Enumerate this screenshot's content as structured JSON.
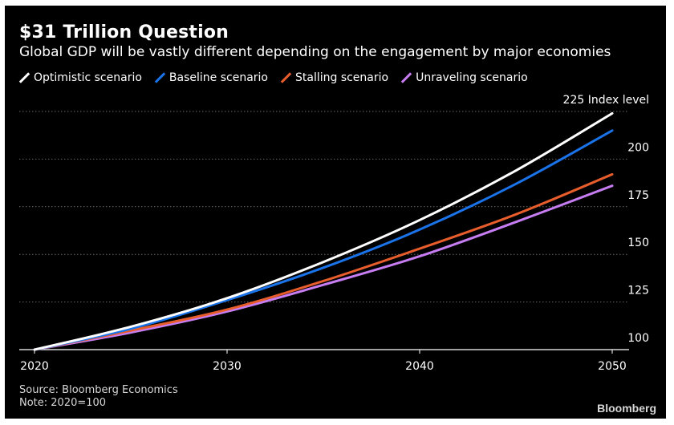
{
  "title": "$31 Trillion Question",
  "subtitle": "Global GDP will be vastly different depending on the engagement by major economies",
  "source": "Source: Bloomberg Economics",
  "note": "Note: 2020=100",
  "brand": "Bloomberg",
  "chart_data": {
    "type": "line",
    "x_ticks": [
      "2020",
      "2030",
      "2040",
      "2050"
    ],
    "y_ticks": [
      "100",
      "125",
      "150",
      "175",
      "200",
      "225 Index level"
    ],
    "xlim": [
      2020,
      2050
    ],
    "ylim": [
      100,
      225
    ],
    "grid": true,
    "legend": "top-left",
    "series": [
      {
        "name": "Optimistic scenario",
        "color": "#ffffff",
        "x": [
          2020,
          2025,
          2030,
          2035,
          2040,
          2045,
          2050
        ],
        "values": [
          100,
          112,
          127,
          146,
          168,
          194,
          224
        ]
      },
      {
        "name": "Baseline scenario",
        "color": "#1a73e8",
        "x": [
          2020,
          2025,
          2030,
          2035,
          2040,
          2045,
          2050
        ],
        "values": [
          100,
          111,
          126,
          143,
          163,
          187,
          215
        ]
      },
      {
        "name": "Stalling scenario",
        "color": "#e85d2c",
        "x": [
          2020,
          2025,
          2030,
          2035,
          2040,
          2045,
          2050
        ],
        "values": [
          100,
          110,
          121,
          136,
          153,
          171,
          192
        ]
      },
      {
        "name": "Unraveling scenario",
        "color": "#c77df2",
        "x": [
          2020,
          2025,
          2030,
          2035,
          2040,
          2045,
          2050
        ],
        "values": [
          100,
          109,
          120,
          134,
          149,
          167,
          186
        ]
      }
    ]
  }
}
